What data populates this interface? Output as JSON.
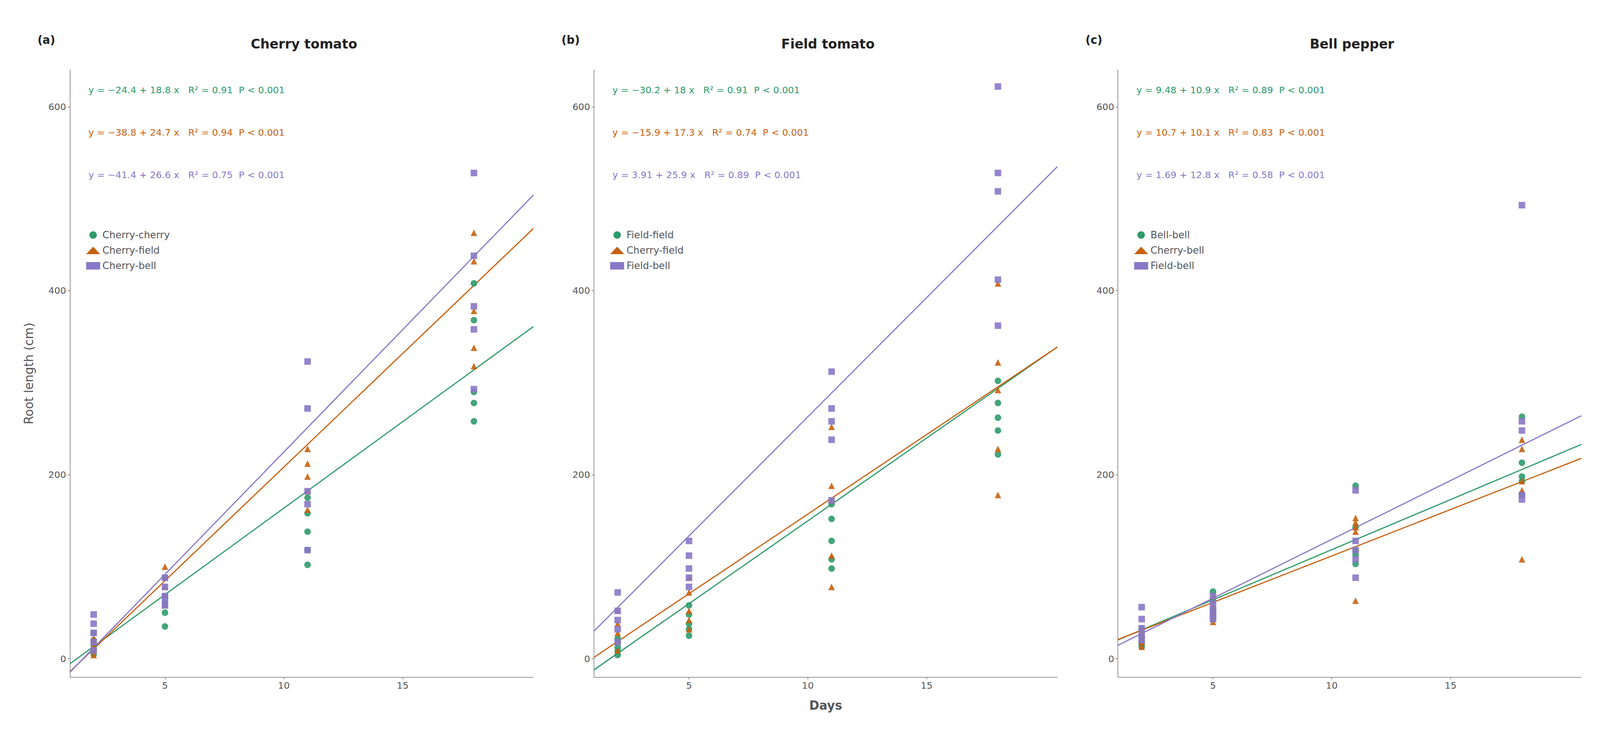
{
  "chart_data": [
    {
      "type": "scatter",
      "title": "Cherry tomato",
      "panel_label": "(a)",
      "ylabel": "Root length (cm)",
      "xlim": [
        1,
        20.5
      ],
      "xticks": [
        5,
        10,
        15
      ],
      "ylim": [
        -20,
        640
      ],
      "yticks": [
        0,
        200,
        400,
        600
      ],
      "grid": false,
      "legend": "upper left",
      "series": [
        {
          "name": "Cherry-cherry",
          "color": "#2e9b6a",
          "marker": "circle",
          "type": "scatter",
          "x": [
            2,
            2,
            2,
            2,
            2,
            5,
            5,
            5,
            5,
            5,
            11,
            11,
            11,
            11,
            11,
            18,
            18,
            18,
            18,
            18
          ],
          "values": [
            28,
            20,
            15,
            10,
            5,
            88,
            68,
            60,
            50,
            35,
            175,
            158,
            138,
            118,
            102,
            408,
            368,
            290,
            278,
            258
          ],
          "fit": {
            "type": "line",
            "x": [
              1,
              20.5
            ],
            "values": [
              -5.6,
              361
            ]
          },
          "annotation": "y = −24.4 + 18.8 x   R² = 0.91  P < 0.001"
        },
        {
          "name": "Cherry-field",
          "color": "#c8600e",
          "marker": "triangle",
          "type": "scatter",
          "x": [
            2,
            2,
            2,
            2,
            2,
            5,
            5,
            5,
            5,
            5,
            11,
            11,
            11,
            11,
            11,
            18,
            18,
            18,
            18,
            18
          ],
          "values": [
            22,
            18,
            13,
            9,
            4,
            100,
            88,
            78,
            68,
            58,
            228,
            212,
            198,
            182,
            162,
            463,
            432,
            378,
            338,
            318
          ],
          "fit": {
            "type": "line",
            "x": [
              1,
              20.5
            ],
            "values": [
              -14.1,
              467.55
            ]
          },
          "annotation": "y = −38.8 + 24.7 x   R² = 0.94  P < 0.001"
        },
        {
          "name": "Cherry-bell",
          "color": "#8878c8",
          "marker": "square",
          "type": "scatter",
          "x": [
            2,
            2,
            2,
            2,
            2,
            5,
            5,
            5,
            5,
            5,
            11,
            11,
            11,
            11,
            11,
            18,
            18,
            18,
            18,
            18
          ],
          "values": [
            48,
            38,
            28,
            18,
            9,
            88,
            78,
            68,
            63,
            58,
            323,
            272,
            182,
            168,
            118,
            528,
            438,
            383,
            358,
            293
          ],
          "fit": {
            "type": "line",
            "x": [
              1,
              20.5
            ],
            "values": [
              -14.8,
              503.9
            ]
          },
          "annotation": "y = −41.4 + 26.6 x   R² = 0.75  P < 0.001"
        }
      ]
    },
    {
      "type": "scatter",
      "title": "Field tomato",
      "panel_label": "(b)",
      "xlabel": "Days",
      "xlim": [
        1,
        20.5
      ],
      "xticks": [
        5,
        10,
        15
      ],
      "ylim": [
        -20,
        640
      ],
      "yticks": [
        0,
        200,
        400,
        600
      ],
      "grid": false,
      "legend": "upper left",
      "series": [
        {
          "name": "Field-field",
          "color": "#2e9b6a",
          "marker": "circle",
          "type": "scatter",
          "x": [
            2,
            2,
            2,
            2,
            2,
            5,
            5,
            5,
            5,
            5,
            11,
            11,
            11,
            11,
            11,
            18,
            18,
            18,
            18,
            18
          ],
          "values": [
            22,
            18,
            12,
            8,
            4,
            58,
            48,
            38,
            32,
            25,
            168,
            152,
            128,
            108,
            98,
            302,
            278,
            262,
            248,
            222
          ],
          "fit": {
            "type": "line",
            "x": [
              1,
              20.5
            ],
            "values": [
              -12.2,
              338.8
            ]
          },
          "annotation": "y = −30.2 + 18 x   R² = 0.91  P < 0.001"
        },
        {
          "name": "Cherry-field",
          "color": "#c8600e",
          "marker": "triangle",
          "type": "scatter",
          "x": [
            2,
            2,
            2,
            2,
            2,
            5,
            5,
            5,
            5,
            5,
            11,
            11,
            11,
            11,
            11,
            18,
            18,
            18,
            18,
            18
          ],
          "values": [
            52,
            38,
            28,
            18,
            9,
            88,
            72,
            52,
            42,
            32,
            252,
            188,
            172,
            112,
            78,
            408,
            322,
            292,
            228,
            178
          ],
          "fit": {
            "type": "line",
            "x": [
              1,
              20.5
            ],
            "values": [
              1.4,
              338.75
            ]
          },
          "annotation": "y = −15.9 + 17.3 x   R² = 0.74  P < 0.001"
        },
        {
          "name": "Field-bell",
          "color": "#8878c8",
          "marker": "square",
          "type": "scatter",
          "x": [
            2,
            2,
            2,
            2,
            2,
            5,
            5,
            5,
            5,
            5,
            11,
            11,
            11,
            11,
            11,
            18,
            18,
            18,
            18,
            18
          ],
          "values": [
            72,
            52,
            42,
            32,
            18,
            128,
            112,
            98,
            88,
            78,
            312,
            272,
            258,
            238,
            172,
            622,
            528,
            508,
            412,
            362
          ],
          "fit": {
            "type": "line",
            "x": [
              1,
              20.5
            ],
            "values": [
              29.81,
              534.86
            ]
          },
          "annotation": "y = 3.91 + 25.9 x   R² = 0.89  P < 0.001"
        }
      ]
    },
    {
      "type": "scatter",
      "title": "Bell pepper",
      "panel_label": "(c)",
      "xlim": [
        1,
        20.5
      ],
      "xticks": [
        5,
        10,
        15
      ],
      "ylim": [
        -20,
        640
      ],
      "yticks": [
        0,
        200,
        400,
        600
      ],
      "grid": false,
      "legend": "upper left",
      "series": [
        {
          "name": "Bell-bell",
          "color": "#2e9b6a",
          "marker": "circle",
          "type": "scatter",
          "x": [
            2,
            2,
            2,
            2,
            2,
            5,
            5,
            5,
            5,
            5,
            11,
            11,
            11,
            11,
            11,
            18,
            18,
            18,
            18,
            18
          ],
          "values": [
            33,
            23,
            18,
            16,
            13,
            73,
            63,
            53,
            48,
            43,
            188,
            143,
            118,
            113,
            103,
            263,
            213,
            198,
            193,
            178
          ],
          "fit": {
            "type": "line",
            "x": [
              1,
              20.5
            ],
            "values": [
              20.38,
              232.93
            ]
          },
          "annotation": "y = 9.48 + 10.9 x   R² = 0.89  P < 0.001"
        },
        {
          "name": "Cherry-bell",
          "color": "#c8600e",
          "marker": "triangle",
          "type": "scatter",
          "x": [
            2,
            2,
            2,
            2,
            2,
            5,
            5,
            5,
            5,
            5,
            11,
            11,
            11,
            11,
            11,
            18,
            18,
            18,
            18,
            18
          ],
          "values": [
            33,
            28,
            23,
            18,
            13,
            68,
            58,
            50,
            46,
            40,
            153,
            148,
            143,
            138,
            63,
            238,
            228,
            193,
            183,
            108
          ],
          "fit": {
            "type": "line",
            "x": [
              1,
              20.5
            ],
            "values": [
              20.8,
              217.75
            ]
          },
          "annotation": "y = 10.7 + 10.1 x   R² = 0.83  P < 0.001"
        },
        {
          "name": "Field-bell",
          "color": "#8878c8",
          "marker": "square",
          "type": "scatter",
          "x": [
            2,
            2,
            2,
            2,
            2,
            5,
            5,
            5,
            5,
            5,
            11,
            11,
            11,
            11,
            11,
            18,
            18,
            18,
            18,
            18
          ],
          "values": [
            56,
            43,
            33,
            26,
            20,
            68,
            60,
            53,
            48,
            43,
            183,
            128,
            118,
            108,
            88,
            493,
            258,
            248,
            178,
            173
          ],
          "fit": {
            "type": "line",
            "x": [
              1,
              20.5
            ],
            "values": [
              14.49,
              264.09
            ]
          },
          "annotation": "y = 1.69 + 12.8 x   R² = 0.58  P < 0.001"
        }
      ]
    }
  ]
}
